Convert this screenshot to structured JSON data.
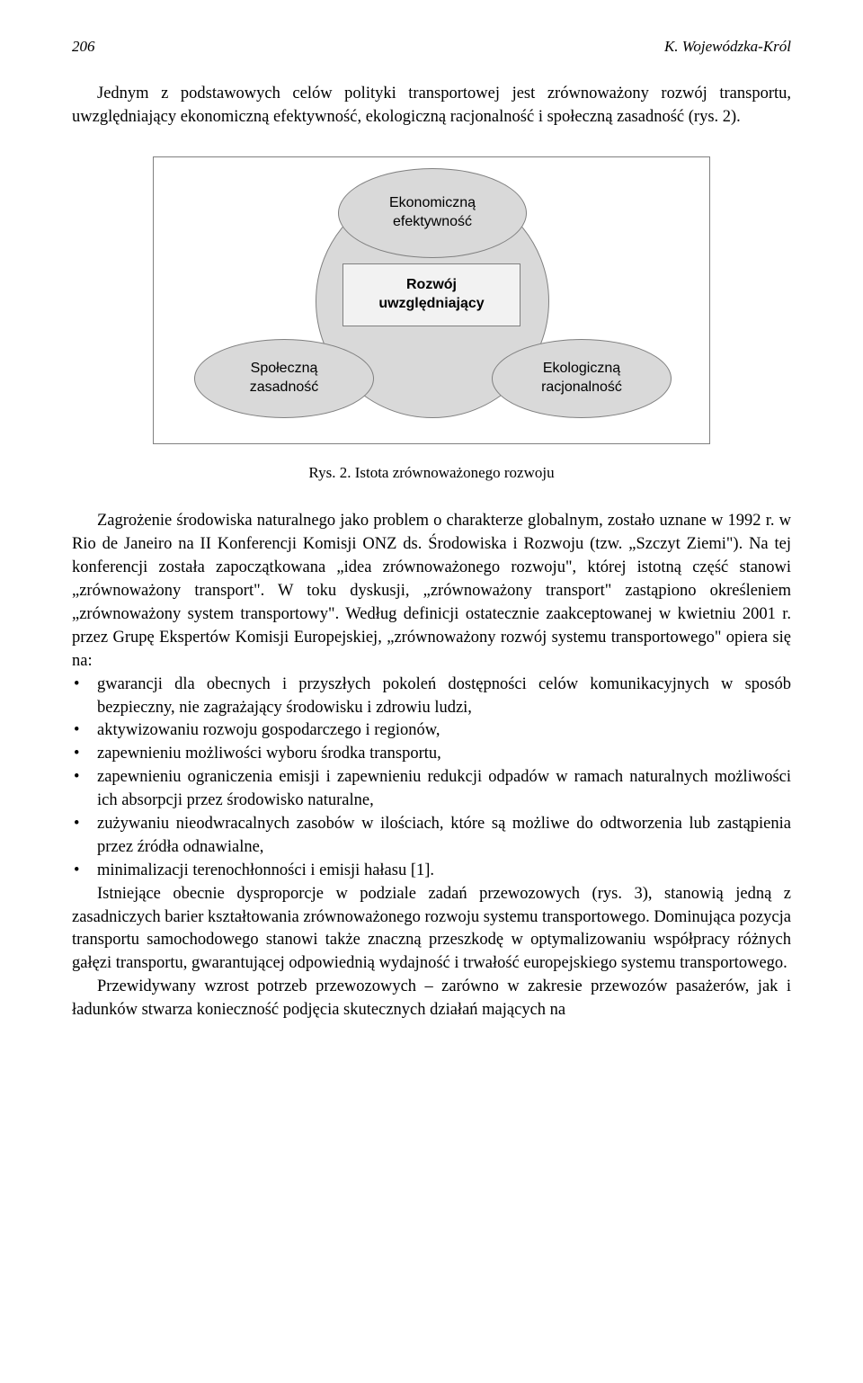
{
  "header": {
    "page_number": "206",
    "author": "K. Wojewódzka-Król"
  },
  "intro": "Jednym z podstawowych celów polityki transportowej jest zrównoważony rozwój transportu, uwzględniający ekonomiczną efektywność, ekologiczną racjonalność i społeczną zasadność (rys. 2).",
  "diagram": {
    "center_line1": "Rozwój",
    "center_line2": "uwzględniający",
    "top_line1": "Ekonomiczną",
    "top_line2": "efektywność",
    "left_line1": "Społeczną",
    "left_line2": "zasadność",
    "right_line1": "Ekologiczną",
    "right_line2": "racjonalność",
    "fill_color": "#d9d9d9",
    "border_color": "#808080"
  },
  "figure_caption": "Rys. 2. Istota zrównoważonego rozwoju",
  "para1": "Zagrożenie środowiska naturalnego jako problem o charakterze globalnym, zostało uznane w 1992 r. w Rio de Janeiro na II Konferencji Komisji ONZ ds. Środowiska i Rozwoju (tzw. „Szczyt Ziemi\"). Na tej konferencji została zapoczątkowana „idea zrównoważonego rozwoju\", której istotną część stanowi „zrównoważony transport\". W toku dyskusji, „zrównoważony transport\" zastąpiono określeniem „zrównoważony system transportowy\". Według definicji ostatecznie zaakceptowanej w kwietniu 2001 r. przez Grupę Ekspertów Komisji Europejskiej, „zrównoważony rozwój systemu transportowego\" opiera się na:",
  "bullets": [
    "gwarancji dla obecnych i przyszłych pokoleń dostępności celów komunikacyjnych w sposób bezpieczny, nie zagrażający środowisku i zdrowiu ludzi,",
    "aktywizowaniu rozwoju gospodarczego i regionów,",
    "zapewnieniu możliwości wyboru środka transportu,",
    "zapewnieniu ograniczenia emisji i zapewnieniu redukcji odpadów w ramach naturalnych możliwości ich absorpcji przez środowisko naturalne,",
    "zużywaniu nieodwracalnych zasobów w ilościach, które są możliwe do odtworzenia lub zastąpienia przez źródła odnawialne,",
    "minimalizacji terenochłonności i emisji hałasu [1]."
  ],
  "para2": "Istniejące obecnie dysproporcje w podziale zadań przewozowych (rys. 3), stanowią jedną z zasadniczych barier kształtowania zrównoważonego rozwoju systemu transportowego. Dominująca pozycja transportu samochodowego stanowi także znaczną przeszkodę w optymalizowaniu współpracy różnych gałęzi transportu, gwarantującej odpowiednią wydajność i trwałość europejskiego systemu transportowego.",
  "para3": "Przewidywany wzrost potrzeb przewozowych – zarówno w zakresie przewozów pasażerów, jak i ładunków stwarza konieczność podjęcia skutecznych działań mających na"
}
